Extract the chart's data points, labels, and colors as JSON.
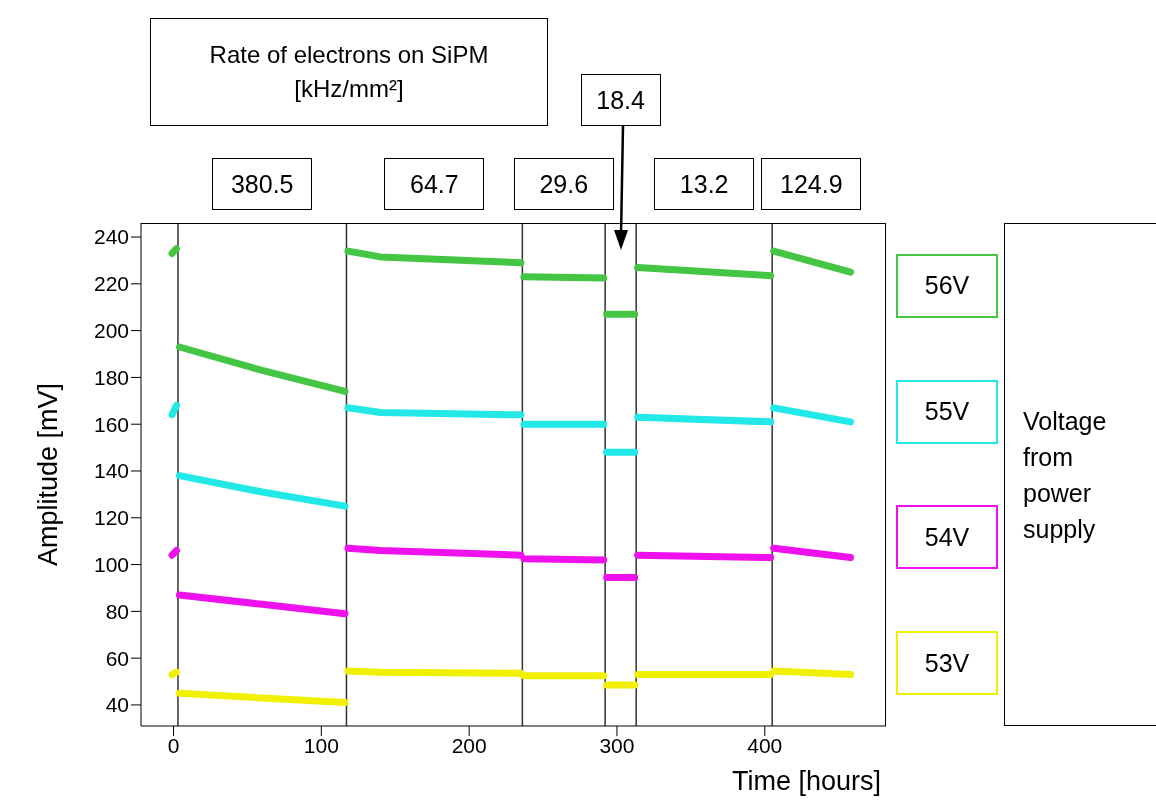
{
  "chart_data": {
    "type": "line",
    "title": "Rate of electrons on SiPM [kHz/mm²]",
    "xlabel": "Time [hours]",
    "ylabel": "Amplitude [mV]",
    "legend_title": "Voltage from power supply",
    "x": [
      -1,
      2,
      2.5,
      4,
      60,
      116,
      116.5,
      118,
      140,
      235,
      235.5,
      237,
      291,
      291.5,
      293,
      312,
      312.5,
      314,
      404,
      404.5,
      406,
      458
    ],
    "series": [
      {
        "name": "56V",
        "color": "#44c544",
        "values": [
          233,
          235,
          null,
          193,
          183,
          174,
          null,
          234,
          231.5,
          229,
          null,
          223,
          222.5,
          null,
          207,
          207,
          null,
          227,
          223.5,
          null,
          234,
          225
        ]
      },
      {
        "name": "55V",
        "color": "#22e8e8",
        "values": [
          164,
          168,
          null,
          138,
          131,
          125,
          null,
          167,
          165,
          164,
          null,
          160,
          160,
          null,
          148,
          148,
          null,
          163,
          161,
          null,
          167,
          161
        ]
      },
      {
        "name": "54V",
        "color": "#ee11ee",
        "values": [
          104,
          106,
          null,
          87,
          83,
          79,
          null,
          107,
          106,
          104,
          null,
          102.5,
          102,
          null,
          94.5,
          94.5,
          null,
          104,
          103,
          null,
          107,
          103
        ]
      },
      {
        "name": "53V",
        "color": "#f0f000",
        "values": [
          53,
          54,
          null,
          45,
          43,
          41,
          null,
          54.5,
          54,
          53.5,
          null,
          52.5,
          52.5,
          null,
          48.5,
          48.5,
          null,
          53,
          53,
          null,
          54.5,
          53
        ]
      }
    ],
    "xlim": [
      -22,
      482
    ],
    "xticks": [
      0,
      100,
      200,
      300,
      400
    ],
    "ylim": [
      31,
      246
    ],
    "yticks": [
      40,
      60,
      80,
      100,
      120,
      140,
      160,
      180,
      200,
      220,
      240
    ],
    "ref_lines": [
      {
        "axis": "x",
        "value": 3
      },
      {
        "axis": "x",
        "value": 117
      },
      {
        "axis": "x",
        "value": 236
      },
      {
        "axis": "x",
        "value": 292
      },
      {
        "axis": "x",
        "value": 313
      },
      {
        "axis": "x",
        "value": 405
      }
    ],
    "annotations": [
      "380.5",
      "64.7",
      "29.6",
      "18.4",
      "13.2",
      "124.9"
    ],
    "grid": false,
    "legend": "right",
    "marker": "none",
    "line_style": "solid"
  }
}
